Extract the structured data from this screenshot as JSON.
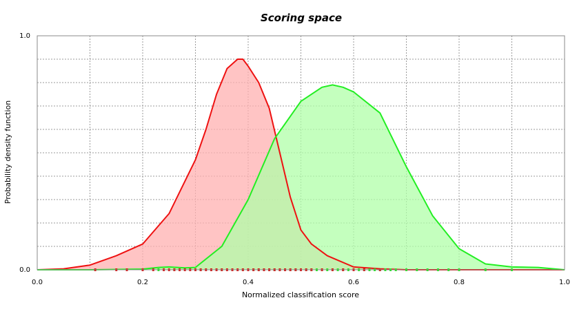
{
  "chart_data": {
    "type": "area",
    "title": "Scoring space",
    "xlabel": "Normalized classification score",
    "ylabel": "Probability density function",
    "xlim": [
      0.0,
      1.0
    ],
    "ylim": [
      0.0,
      1.0
    ],
    "x_ticks": [
      "0.0",
      "0.2",
      "0.4",
      "0.6",
      "0.8",
      "1.0"
    ],
    "y_ticks": [
      "0.0",
      "1.0"
    ],
    "grid": true,
    "legend": "none",
    "series": [
      {
        "color": "#ee1111",
        "fill": "#ffb0b0",
        "x": [
          0.0,
          0.05,
          0.1,
          0.15,
          0.2,
          0.25,
          0.3,
          0.32,
          0.34,
          0.36,
          0.38,
          0.39,
          0.4,
          0.42,
          0.44,
          0.46,
          0.48,
          0.5,
          0.52,
          0.55,
          0.6,
          0.65,
          0.7,
          0.75,
          0.8,
          0.9,
          1.0
        ],
        "y": [
          0.0,
          0.004,
          0.02,
          0.06,
          0.11,
          0.24,
          0.47,
          0.6,
          0.75,
          0.86,
          0.9,
          0.9,
          0.87,
          0.8,
          0.69,
          0.5,
          0.31,
          0.17,
          0.11,
          0.06,
          0.012,
          0.004,
          0.0,
          0.0,
          0.0,
          0.0,
          0.0
        ]
      },
      {
        "color": "#22ee22",
        "fill": "#b0ffa8",
        "x": [
          0.0,
          0.1,
          0.2,
          0.23,
          0.25,
          0.28,
          0.3,
          0.35,
          0.4,
          0.45,
          0.5,
          0.54,
          0.56,
          0.58,
          0.6,
          0.65,
          0.7,
          0.75,
          0.8,
          0.85,
          0.9,
          0.95,
          1.0
        ],
        "y": [
          0.0,
          0.0,
          0.003,
          0.01,
          0.012,
          0.008,
          0.01,
          0.1,
          0.3,
          0.56,
          0.72,
          0.78,
          0.79,
          0.78,
          0.76,
          0.67,
          0.44,
          0.23,
          0.09,
          0.025,
          0.012,
          0.01,
          0.0
        ]
      }
    ],
    "rug": [
      {
        "color": "#22ee22",
        "x": [
          0.23,
          0.26,
          0.31,
          0.33,
          0.35,
          0.37,
          0.39,
          0.41,
          0.42,
          0.43,
          0.44,
          0.45,
          0.46,
          0.47,
          0.48,
          0.49,
          0.5,
          0.51,
          0.52,
          0.53,
          0.54,
          0.55,
          0.56,
          0.57,
          0.58,
          0.59,
          0.6,
          0.61,
          0.62,
          0.63,
          0.64,
          0.65,
          0.66,
          0.67,
          0.68,
          0.7,
          0.72,
          0.74,
          0.76,
          0.78,
          0.8,
          0.85,
          0.9
        ]
      },
      {
        "color": "#dd1111",
        "x": [
          0.11,
          0.15,
          0.17,
          0.2,
          0.22,
          0.24,
          0.25,
          0.26,
          0.27,
          0.28,
          0.29,
          0.3,
          0.31,
          0.32,
          0.33,
          0.34,
          0.35,
          0.36,
          0.37,
          0.38,
          0.39,
          0.4,
          0.41,
          0.42,
          0.43,
          0.44,
          0.45,
          0.46,
          0.47,
          0.48,
          0.49,
          0.5,
          0.51,
          0.52,
          0.54,
          0.56,
          0.58,
          0.6,
          0.62,
          0.65
        ]
      }
    ]
  }
}
